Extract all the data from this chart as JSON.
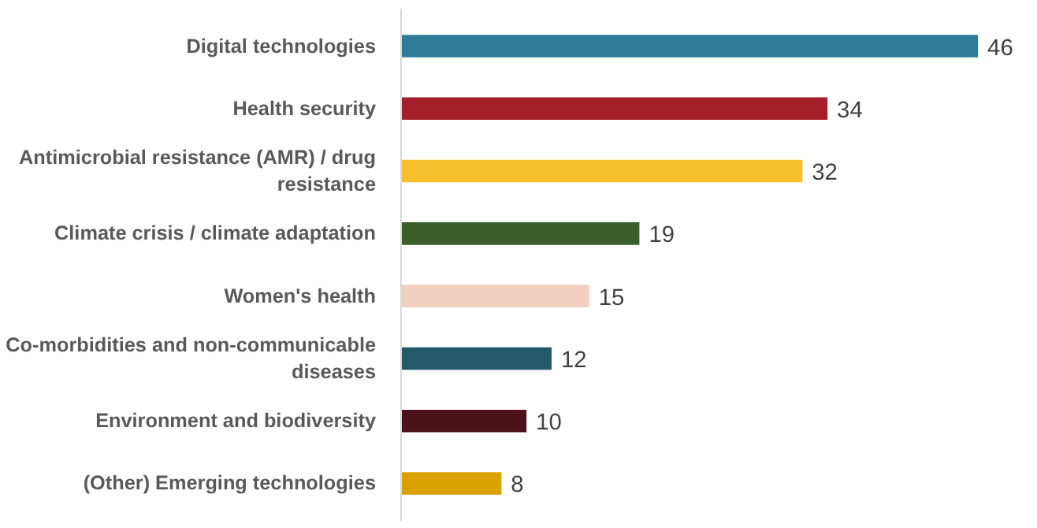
{
  "chart_data": {
    "type": "bar",
    "orientation": "horizontal",
    "data_labels": true,
    "grid": false,
    "categories": [
      "Digital technologies",
      "Health security",
      "Antimicrobial resistance (AMR) / drug resistance",
      "Climate crisis / climate adaptation",
      "Women's health",
      "Co-morbidities and non-communicable diseases",
      "Environment and biodiversity",
      "(Other) Emerging technologies"
    ],
    "values": [
      46,
      34,
      32,
      19,
      15,
      12,
      10,
      8
    ],
    "colors": [
      "#2e7b99",
      "#a51f2b",
      "#f6bf2b",
      "#3b5f2b",
      "#f2d0c0",
      "#235a6b",
      "#4b121a",
      "#dba100"
    ]
  }
}
